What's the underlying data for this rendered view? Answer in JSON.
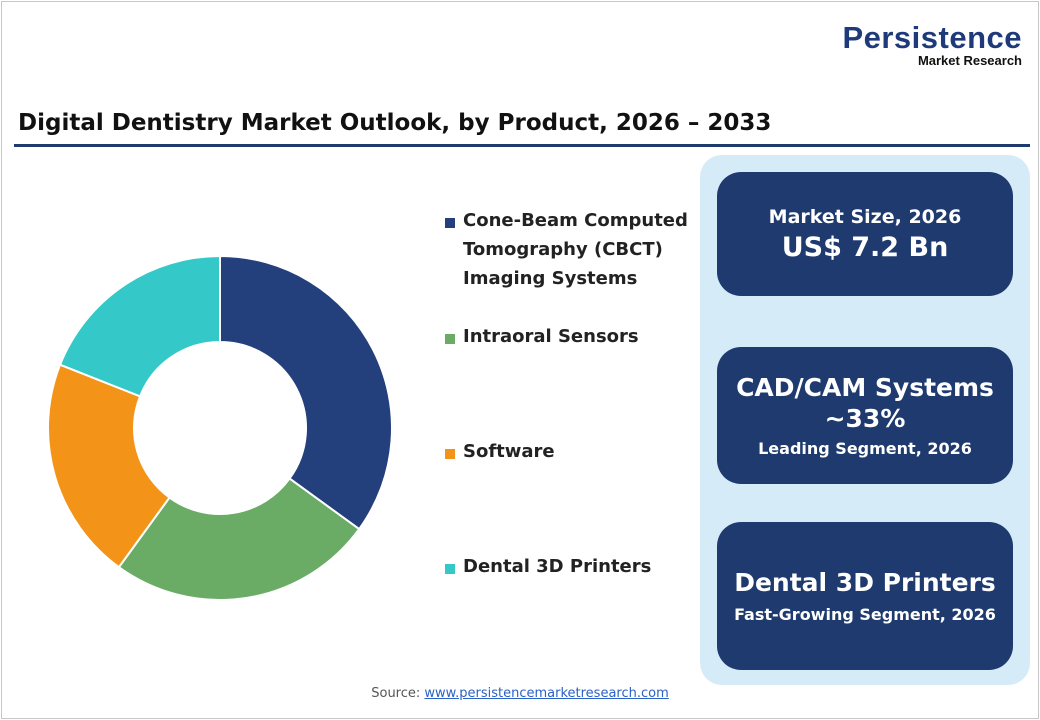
{
  "logo": {
    "line1": "Persistence",
    "line2": "Market Research"
  },
  "title": "Digital Dentistry Market Outlook, by Product, 2026 – 2033",
  "chart_data": {
    "type": "pie",
    "donut": true,
    "title": "Digital Dentistry Market Outlook, by Product, 2026 – 2033",
    "categories": [
      "Cone-Beam Computed Tomography (CBCT) Imaging Systems",
      "Intraoral Sensors",
      "Software",
      "Dental 3D Printers"
    ],
    "values": [
      35,
      25,
      21,
      19
    ],
    "colors": [
      "#233f7c",
      "#6aab65",
      "#f39317",
      "#34c8c8"
    ],
    "legend": "right"
  },
  "legend_lines": [
    [
      "Cone-Beam Computed",
      "Tomography (CBCT)",
      "Imaging Systems"
    ],
    [
      "Intraoral Sensors"
    ],
    [
      "Software"
    ],
    [
      "Dental 3D Printers"
    ]
  ],
  "cards": [
    {
      "label": "Market Size, 2026",
      "value": "US$ 7.2 Bn"
    },
    {
      "label": "CAD/CAM Systems",
      "value": "~33%",
      "sub": "Leading Segment, 2026"
    },
    {
      "label": "Dental 3D Printers",
      "sub": "Fast-Growing Segment, 2026"
    }
  ],
  "source": {
    "label": "Source:",
    "link": "www.persistencemarketresearch.com"
  }
}
